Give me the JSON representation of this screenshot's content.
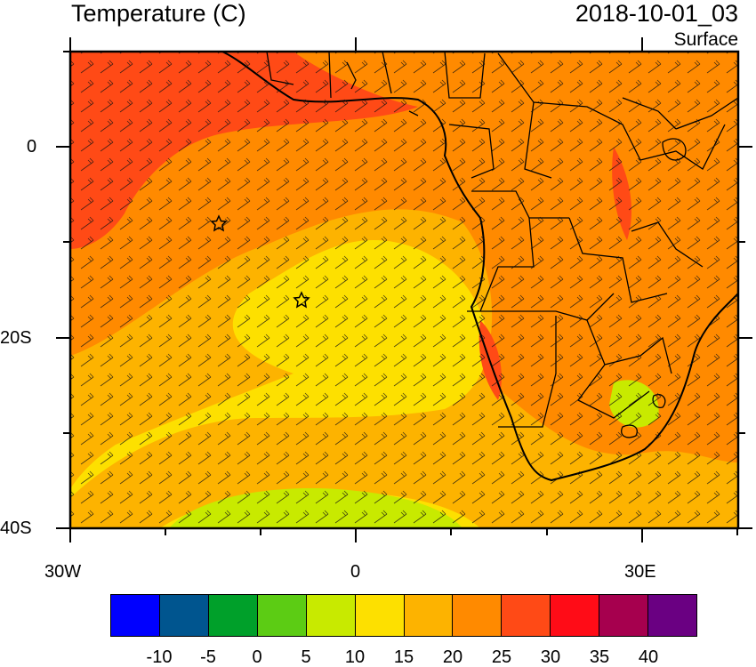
{
  "header": {
    "title": "Temperature (C)",
    "time": "2018-10-01_03",
    "level": "Surface"
  },
  "map": {
    "field": "Surface air temperature with wind barbs",
    "axes": {
      "x_ticks": [
        "30W",
        "0",
        "30E"
      ],
      "y_ticks": [
        "0",
        "20S",
        "40S"
      ]
    },
    "markers": [
      {
        "name": "star-marker",
        "symbol": "star"
      },
      {
        "name": "star-marker",
        "symbol": "star"
      }
    ],
    "colors": {
      "above_30": "#ff4a16",
      "25_30": "#ff8a00",
      "20_25": "#fdb300",
      "15_20": "#fde000",
      "10_15": "#c8ea00",
      "coast": "#000000"
    }
  },
  "colorbar": {
    "labels": [
      "-10",
      "-5",
      "0",
      "5",
      "10",
      "15",
      "20",
      "25",
      "30",
      "35",
      "40"
    ],
    "colors": [
      "#0000ff",
      "#00558f",
      "#00a02a",
      "#5ccc14",
      "#c8ea00",
      "#fde000",
      "#fdb300",
      "#ff8a00",
      "#ff4a16",
      "#ff0c17",
      "#a6004e",
      "#6a0082"
    ]
  }
}
